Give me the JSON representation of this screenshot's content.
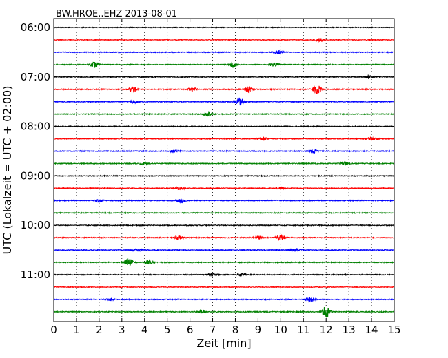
{
  "chart_data": {
    "type": "line",
    "title": "BW.HROE..EHZ 2013-08-01",
    "xlabel": "Zeit  [min]",
    "ylabel": "UTC (Lokalzeit = UTC + 02:00)",
    "xlim": [
      0,
      15
    ],
    "x_ticks": [
      0,
      1,
      2,
      3,
      4,
      5,
      6,
      7,
      8,
      9,
      10,
      11,
      12,
      13,
      14,
      15
    ],
    "y_ticks": [
      "06:00",
      "07:00",
      "08:00",
      "09:00",
      "10:00",
      "11:00"
    ],
    "grid": "vertical dotted",
    "trace_colors": [
      "#000000",
      "#ff0000",
      "#0000ff",
      "#008000"
    ],
    "traces": [
      {
        "start": "06:00",
        "color": "#000000",
        "noise": 0.25,
        "events": []
      },
      {
        "start": "06:15",
        "color": "#ff0000",
        "noise": 0.25,
        "events": [
          [
            11.7,
            1.4
          ]
        ]
      },
      {
        "start": "06:30",
        "color": "#0000ff",
        "noise": 0.28,
        "events": [
          [
            9.9,
            1.2
          ]
        ]
      },
      {
        "start": "06:45",
        "color": "#008000",
        "noise": 0.28,
        "events": [
          [
            1.8,
            2.2
          ],
          [
            7.9,
            2.2
          ],
          [
            9.7,
            1.6
          ]
        ]
      },
      {
        "start": "07:00",
        "color": "#000000",
        "noise": 0.28,
        "events": [
          [
            13.9,
            1.4
          ]
        ]
      },
      {
        "start": "07:15",
        "color": "#ff0000",
        "noise": 0.3,
        "events": [
          [
            3.5,
            2.2
          ],
          [
            6.1,
            1.2
          ],
          [
            8.6,
            2
          ],
          [
            11.6,
            3.5
          ]
        ]
      },
      {
        "start": "07:30",
        "color": "#0000ff",
        "noise": 0.3,
        "events": [
          [
            8.2,
            2.5
          ],
          [
            3.5,
            1
          ]
        ]
      },
      {
        "start": "07:45",
        "color": "#008000",
        "noise": 0.28,
        "events": [
          [
            6.8,
            1.8
          ]
        ]
      },
      {
        "start": "08:00",
        "color": "#000000",
        "noise": 0.28,
        "events": []
      },
      {
        "start": "08:15",
        "color": "#ff0000",
        "noise": 0.28,
        "events": [
          [
            9.2,
            1.2
          ],
          [
            14,
            1
          ]
        ]
      },
      {
        "start": "08:30",
        "color": "#0000ff",
        "noise": 0.3,
        "events": [
          [
            11.5,
            1.2
          ],
          [
            5.3,
            0.8
          ]
        ]
      },
      {
        "start": "08:45",
        "color": "#008000",
        "noise": 0.3,
        "events": [
          [
            12.8,
            1.2
          ],
          [
            4,
            0.8
          ]
        ]
      },
      {
        "start": "09:00",
        "color": "#000000",
        "noise": 0.28,
        "events": []
      },
      {
        "start": "09:15",
        "color": "#ff0000",
        "noise": 0.28,
        "events": [
          [
            5.6,
            1
          ],
          [
            10,
            0.8
          ]
        ]
      },
      {
        "start": "09:30",
        "color": "#0000ff",
        "noise": 0.3,
        "events": [
          [
            5.6,
            1.8
          ],
          [
            2,
            1
          ]
        ]
      },
      {
        "start": "09:45",
        "color": "#008000",
        "noise": 0.28,
        "events": []
      },
      {
        "start": "10:00",
        "color": "#000000",
        "noise": 0.28,
        "events": []
      },
      {
        "start": "10:15",
        "color": "#ff0000",
        "noise": 0.3,
        "events": [
          [
            10,
            2.2
          ],
          [
            5.5,
            1.4
          ],
          [
            9,
            1.2
          ]
        ]
      },
      {
        "start": "10:30",
        "color": "#0000ff",
        "noise": 0.28,
        "events": [
          [
            3.7,
            1.2
          ],
          [
            10.6,
            1
          ]
        ]
      },
      {
        "start": "10:45",
        "color": "#008000",
        "noise": 0.3,
        "events": [
          [
            3.3,
            2.5
          ],
          [
            4.2,
            1.6
          ]
        ]
      },
      {
        "start": "11:00",
        "color": "#000000",
        "noise": 0.28,
        "events": [
          [
            7,
            1.2
          ],
          [
            8.3,
            1
          ]
        ]
      },
      {
        "start": "11:15",
        "color": "#ff0000",
        "noise": 0.25,
        "events": []
      },
      {
        "start": "11:30",
        "color": "#0000ff",
        "noise": 0.28,
        "events": [
          [
            11.3,
            1.4
          ],
          [
            2.5,
            0.8
          ]
        ]
      },
      {
        "start": "11:45",
        "color": "#008000",
        "noise": 0.3,
        "events": [
          [
            12,
            3.8
          ],
          [
            6.5,
            1
          ]
        ]
      }
    ]
  }
}
